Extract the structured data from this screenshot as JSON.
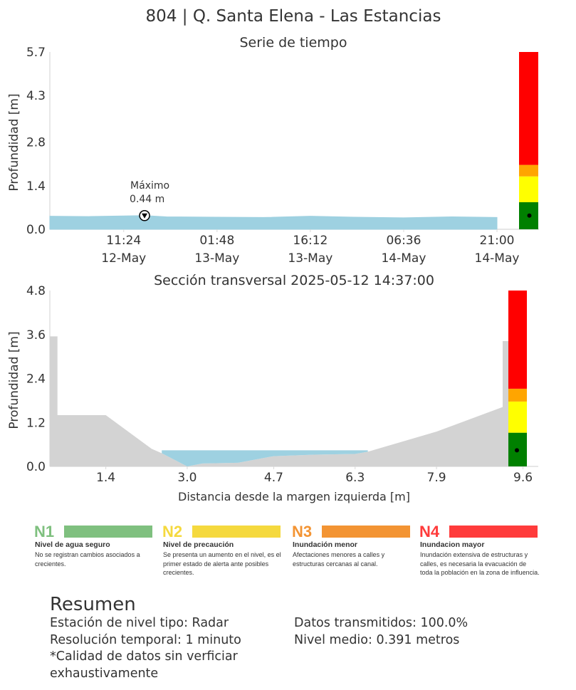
{
  "figure": {
    "title": "804 | Q. Santa Elena - Las Estancias"
  },
  "chart_data": [
    {
      "type": "area",
      "title": "Serie de tiempo",
      "ylabel": "Profundidad [m]",
      "xlabel": "",
      "yticks": [
        "0.0",
        "1.4",
        "2.8",
        "4.3",
        "5.7"
      ],
      "ylim": [
        0,
        5.7
      ],
      "xtick_times": [
        "11:24",
        "01:48",
        "16:12",
        "06:36",
        "21:00"
      ],
      "xtick_dates": [
        "12-May",
        "13-May",
        "13-May",
        "14-May",
        "14-May"
      ],
      "x": [
        "2025-05-12 00:00",
        "2025-05-12 06:00",
        "2025-05-12 11:24",
        "2025-05-12 14:37",
        "2025-05-12 18:00",
        "2025-05-13 01:48",
        "2025-05-13 09:00",
        "2025-05-13 16:12",
        "2025-05-13 23:00",
        "2025-05-14 06:36",
        "2025-05-14 14:00",
        "2025-05-14 21:00"
      ],
      "series": [
        {
          "values": [
            0.42,
            0.41,
            0.43,
            0.44,
            0.4,
            0.39,
            0.38,
            0.42,
            0.39,
            0.37,
            0.4,
            0.38
          ]
        }
      ],
      "annotation": {
        "label": "Máximo",
        "value_label": "0.44 m",
        "x": "2025-05-12 14:37",
        "y": 0.44
      },
      "level_bar": {
        "bands": [
          {
            "from": 0,
            "to": 0.87,
            "color": "#008000"
          },
          {
            "from": 0.87,
            "to": 1.7,
            "color": "#ffff00"
          },
          {
            "from": 1.7,
            "to": 2.07,
            "color": "#ffa500"
          },
          {
            "from": 2.07,
            "to": 5.7,
            "color": "#ff0000"
          }
        ],
        "current": 0.44
      },
      "fill_color": "#9ed1e1",
      "grid": false
    },
    {
      "type": "area",
      "title": "Sección transversal 2025-05-12 14:37:00",
      "xlabel": "Distancia desde la margen izquierda [m]",
      "ylabel": "Profundidad [m]",
      "yticks": [
        "0.0",
        "1.2",
        "2.4",
        "3.6",
        "4.8"
      ],
      "ylim": [
        0,
        4.8
      ],
      "xticks": [
        "1.4",
        "3.0",
        "4.7",
        "6.3",
        "7.9",
        "9.6"
      ],
      "xlim": [
        0.3,
        9.9
      ],
      "terrain": {
        "x": [
          0.3,
          0.45,
          0.45,
          1.2,
          1.4,
          2.3,
          2.5,
          3.0,
          3.3,
          4.0,
          4.7,
          5.5,
          6.3,
          6.55,
          7.9,
          9.2,
          9.2,
          9.35,
          9.35,
          9.6
        ],
        "y": [
          3.55,
          3.55,
          1.4,
          1.4,
          1.4,
          0.48,
          0.36,
          0.0,
          0.08,
          0.1,
          0.28,
          0.32,
          0.34,
          0.4,
          0.95,
          1.62,
          3.42,
          3.42,
          0.0,
          0.0
        ]
      },
      "water_level": 0.44,
      "water_x_range": [
        2.5,
        6.55
      ],
      "terrain_color": "#d3d3d3",
      "fill_color": "#9ed1e1",
      "level_bar": {
        "bands": [
          {
            "from": 0,
            "to": 0.92,
            "color": "#008000"
          },
          {
            "from": 0.92,
            "to": 1.77,
            "color": "#ffff00"
          },
          {
            "from": 1.77,
            "to": 2.12,
            "color": "#ffa500"
          },
          {
            "from": 2.12,
            "to": 4.8,
            "color": "#ff0000"
          }
        ],
        "current": 0.44
      },
      "grid": false
    }
  ],
  "legend": [
    {
      "code": "N1",
      "color": "#7fc07f",
      "code_color": "#7fc07f",
      "name": "Nivel de agua seguro",
      "desc": "No se registran cambios asociados a crecientes."
    },
    {
      "code": "N2",
      "color": "#f5d93e",
      "code_color": "#f5d93e",
      "name": "Nivel de precaución",
      "desc": "Se presenta un aumento en el nivel, es el primer estado de alerta ante posibles crecientes."
    },
    {
      "code": "N3",
      "color": "#f39433",
      "code_color": "#f39433",
      "name": "Inundación menor",
      "desc": "Afectaciones menores a calles y estructuras cercanas al canal."
    },
    {
      "code": "N4",
      "color": "#ff3b3b",
      "code_color": "#ff3b3b",
      "name": "Inundacion mayor",
      "desc": "Inundación extensiva de estructuras y calles, es necesaria la evacuación de toda la población en la zona de influencia."
    }
  ],
  "summary": {
    "title": "Resumen",
    "left": [
      "Estación de nivel tipo: Radar",
      "Resolución temporal: 1 minuto",
      "*Calidad de datos sin verficiar",
      "exhaustivamente"
    ],
    "right": [
      "Datos transmitidos: 100.0%",
      "Nivel medio: 0.391 metros"
    ]
  }
}
